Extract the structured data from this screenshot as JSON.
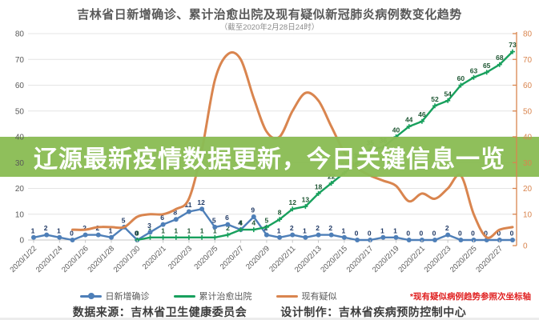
{
  "page": {
    "title": "吉林省日新增确诊、累计治愈出院及现有疑似新冠肺炎病例数变化趋势",
    "subtitle": "（截至2020年2月28日24时）"
  },
  "banner": {
    "headline": "辽源最新疫情数据更新，今日关键信息一览"
  },
  "note": {
    "text": "*现有疑似病例趋势参照次坐标轴"
  },
  "footer": {
    "source": "数据来源：吉林省卫生健康委员会",
    "design": "设计制作：吉林省疾病预防控制中心"
  },
  "colors": {
    "daily_new": "#4e7fb8",
    "cumulative_cured": "#18a05d",
    "current_suspected": "#d9854f",
    "banner_green": "#8abc54",
    "axis_text": "#595959",
    "grid": "#e4e4e4"
  },
  "chart_data": {
    "type": "line",
    "title": "吉林省日新增确诊、累计治愈出院及现有疑似新冠肺炎病例数变化趋势",
    "subtitle": "（截至2020年2月28日24时）",
    "legend_position": "bottom",
    "grid": true,
    "x_label_every": 2,
    "y_left": {
      "min": 0,
      "max": 80,
      "step": 10
    },
    "y_right": {
      "min": 0,
      "max": 80,
      "step": 10
    },
    "categories": [
      "2020/1/22",
      "2020/1/23",
      "2020/1/24",
      "2020/1/25",
      "2020/1/26",
      "2020/1/27",
      "2020/1/28",
      "2020/1/29",
      "2020/1/30",
      "2020/1/31",
      "2020/2/1",
      "2020/2/2",
      "2020/2/3",
      "2020/2/4",
      "2020/2/5",
      "2020/2/6",
      "2020/2/7",
      "2020/2/8",
      "2020/2/9",
      "2020/2/10",
      "2020/2/11",
      "2020/2/12",
      "2020/2/13",
      "2020/2/14",
      "2020/2/15",
      "2020/2/16",
      "2020/2/17",
      "2020/2/18",
      "2020/2/19",
      "2020/2/20",
      "2020/2/21",
      "2020/2/22",
      "2020/2/23",
      "2020/2/24",
      "2020/2/25",
      "2020/2/26",
      "2020/2/27",
      "2020/2/28"
    ],
    "series": [
      {
        "name": "日新增确诊",
        "axis": "left",
        "color": "#4e7fb8",
        "label_color": "#1f3864",
        "marker": "circle",
        "smooth": false,
        "show_labels": true,
        "values": [
          1,
          2,
          1,
          0,
          2,
          2,
          1,
          5,
          0,
          3,
          6,
          8,
          11,
          12,
          5,
          6,
          4,
          9,
          2,
          1,
          2,
          1,
          2,
          2,
          1,
          0,
          0,
          1,
          1,
          0,
          0,
          0,
          2,
          0,
          0,
          0,
          0,
          0
        ]
      },
      {
        "name": "累计治愈出院",
        "axis": "left",
        "color": "#18a05d",
        "label_color": "#1d5632",
        "marker": "plus",
        "smooth": false,
        "show_labels": true,
        "values": [
          null,
          null,
          null,
          null,
          null,
          null,
          null,
          null,
          0,
          1,
          1,
          1,
          1,
          1,
          1,
          2,
          4,
          4,
          5,
          8,
          12,
          13,
          18,
          22,
          26,
          30,
          35,
          36,
          40,
          44,
          46,
          52,
          54,
          60,
          63,
          65,
          68,
          73
        ]
      },
      {
        "name": "现有疑似",
        "axis": "right",
        "color": "#d9854f",
        "label_color": "#b35c24",
        "marker": "none",
        "smooth": true,
        "show_labels": false,
        "values": [
          null,
          null,
          null,
          4,
          4,
          5,
          5,
          5,
          9,
          10,
          10,
          12,
          16,
          35,
          62,
          72,
          70,
          55,
          42,
          40,
          50,
          57,
          54,
          44,
          34,
          28,
          25,
          23,
          21,
          15,
          18,
          16,
          20,
          25,
          10,
          1,
          4,
          5
        ]
      }
    ]
  }
}
